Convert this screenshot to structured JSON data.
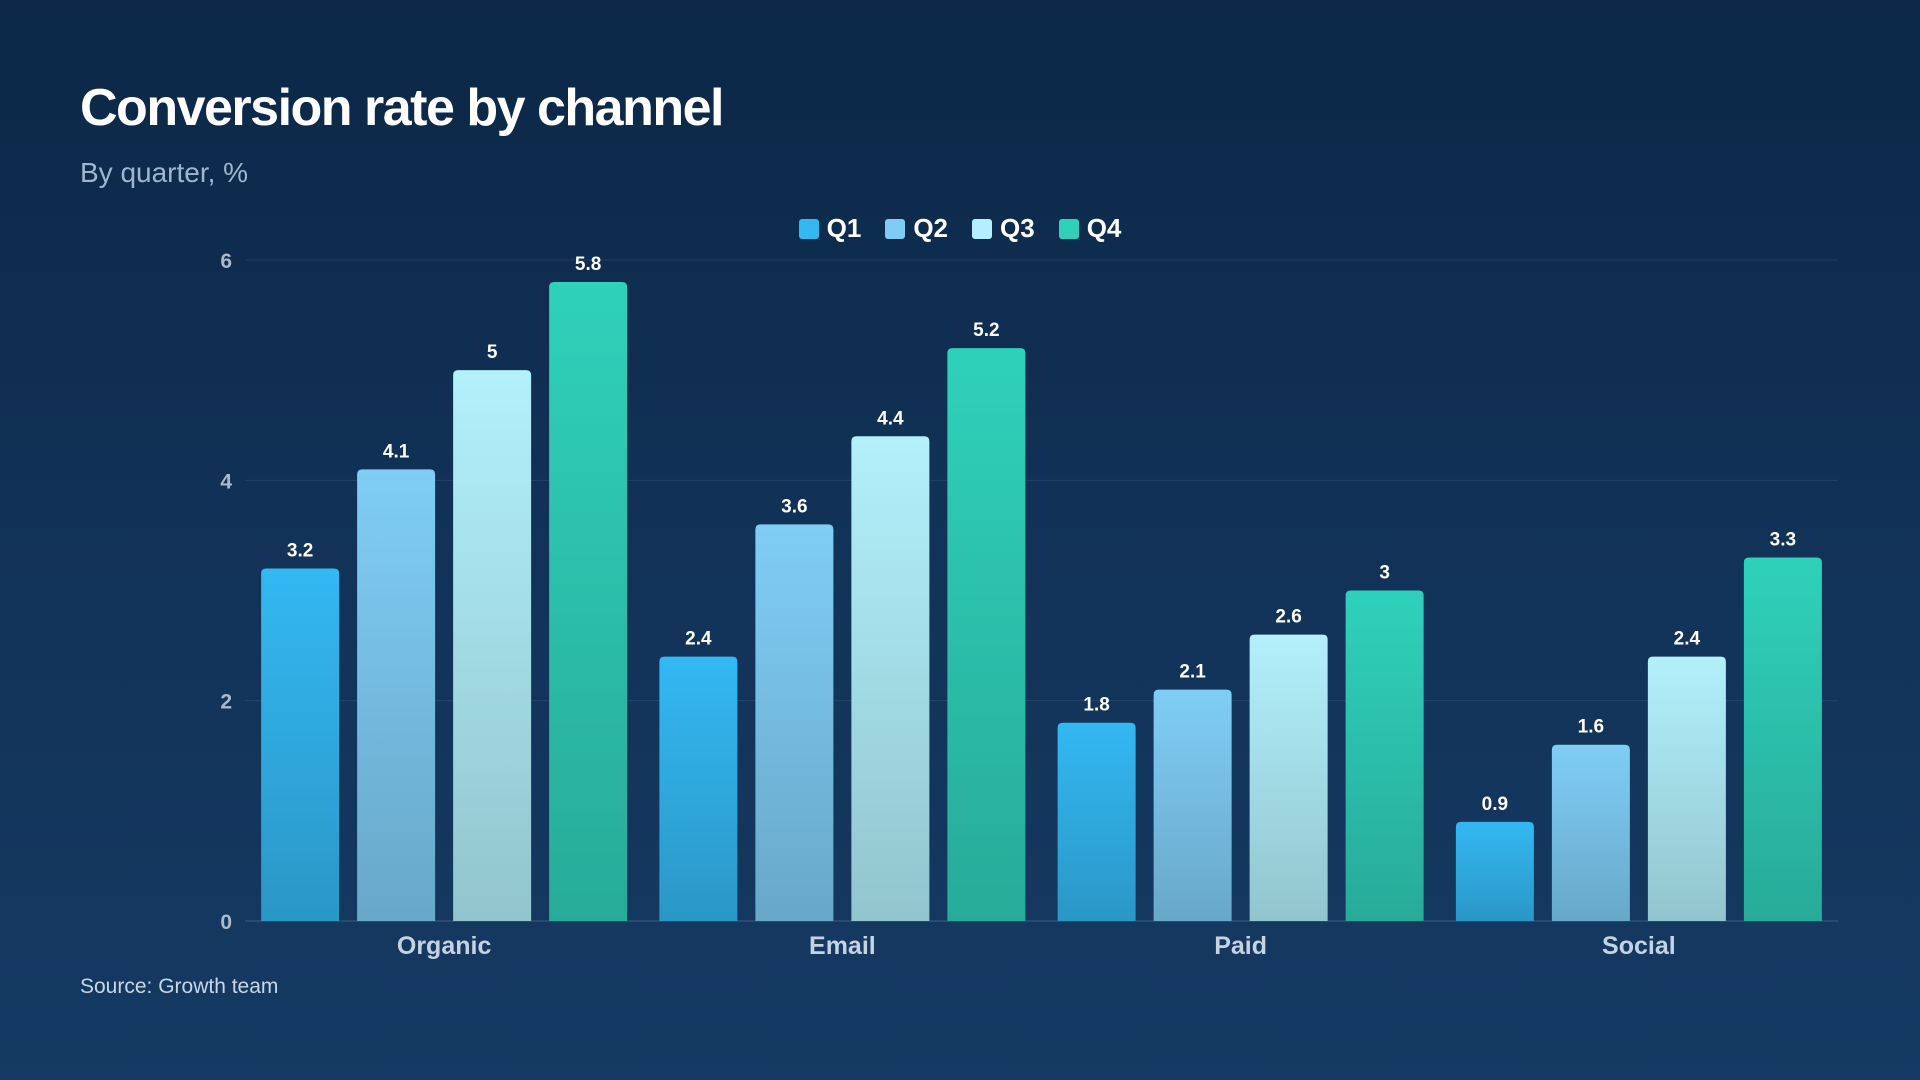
{
  "chart_data": {
    "type": "bar",
    "title": "Conversion rate by channel",
    "subtitle": "By quarter, %",
    "source": "Source: Growth team",
    "categories": [
      "Organic",
      "Email",
      "Paid",
      "Social"
    ],
    "series": [
      {
        "name": "Q1",
        "values": [
          3.2,
          2.4,
          1.8,
          0.9
        ],
        "color": "#33b8f2"
      },
      {
        "name": "Q2",
        "values": [
          4.1,
          3.6,
          2.1,
          1.6
        ],
        "color": "#7fcdf5"
      },
      {
        "name": "Q3",
        "values": [
          5,
          4.4,
          2.6,
          2.4
        ],
        "color": "#b2f0fb"
      },
      {
        "name": "Q4",
        "values": [
          5.8,
          5.2,
          3,
          3.3
        ],
        "color": "#2fd1ba"
      }
    ],
    "yticks": [
      0,
      2,
      4,
      6
    ],
    "ylim": [
      0,
      6
    ],
    "grid": true,
    "legend_position": "top-center",
    "data_labels": true
  },
  "colors": {
    "background": "#0c2747",
    "q1": "#33b8f2",
    "q2": "#7fcdf5",
    "q3": "#b2f0fb",
    "q4": "#2fd1ba"
  }
}
